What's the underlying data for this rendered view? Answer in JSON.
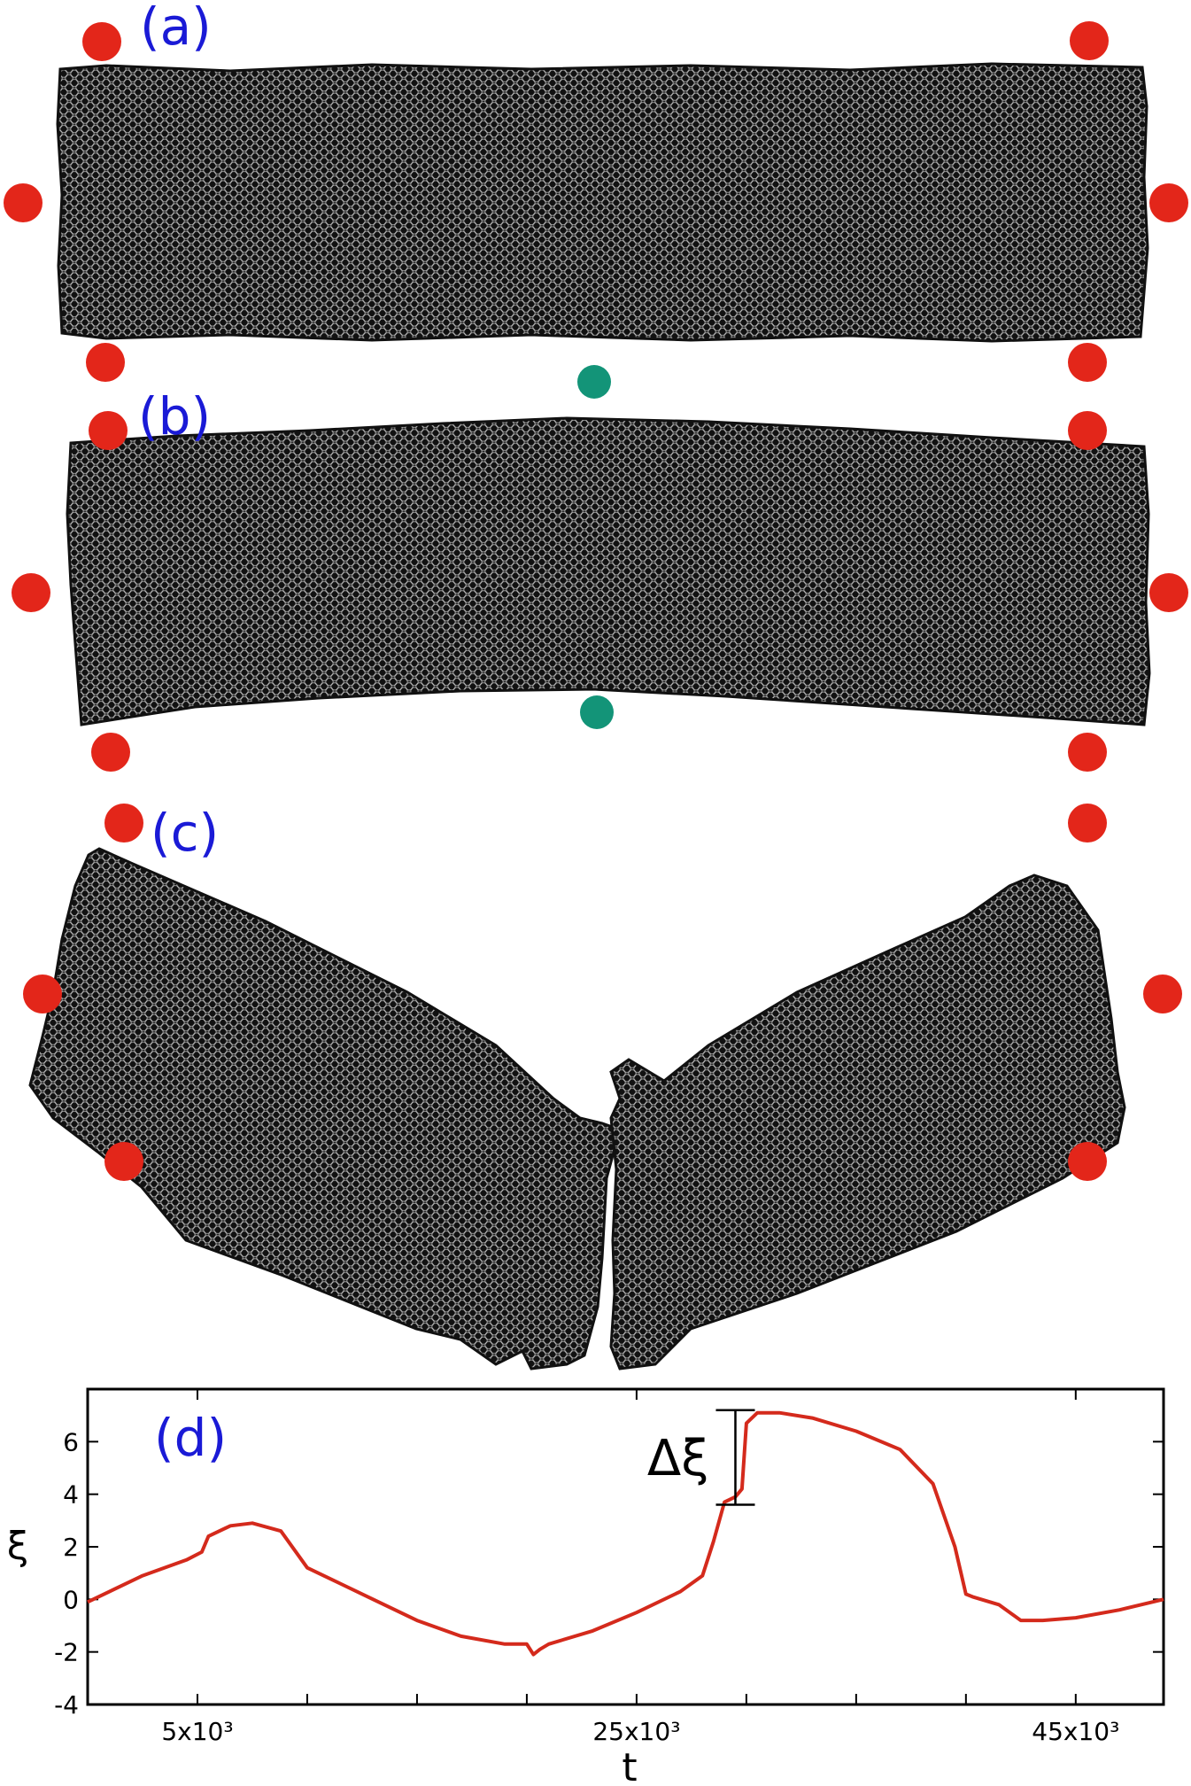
{
  "panels": {
    "a": {
      "label": "(a)"
    },
    "b": {
      "label": "(b)"
    },
    "c": {
      "label": "(c)"
    },
    "d": {
      "label": "(d)"
    }
  },
  "colors": {
    "grain": "#111111",
    "grain_highlight": "#f2f2f2",
    "boundary_particle": "#e3261a",
    "indenter": "#139478",
    "panel_label": "#1a1ad6",
    "curve": "#d42a1c"
  },
  "chart_data": {
    "type": "line",
    "xlabel": "t",
    "ylabel": "ξ",
    "xlim": [
      0,
      49000
    ],
    "ylim": [
      -4,
      8
    ],
    "xticks": [
      5000,
      25000,
      45000
    ],
    "xtick_labels": [
      "5x10³",
      "25x10³",
      "45x10³"
    ],
    "yticks": [
      -4,
      -2,
      0,
      2,
      4,
      6
    ],
    "ytick_labels": [
      "-4",
      "-2",
      "0",
      "2",
      "4",
      "6"
    ],
    "annotation": {
      "text": "Δξ",
      "from": 3.6,
      "to": 7.2,
      "at_t": 29500
    },
    "series": [
      {
        "x": [
          0,
          1000,
          2500,
          4500,
          5200,
          5500,
          6500,
          7500,
          8800,
          10000,
          11500,
          13000,
          15000,
          17000,
          19000,
          20000,
          20300,
          20600,
          21000,
          23000,
          25000,
          27000,
          28000,
          28500,
          29000,
          29500,
          29800,
          30000,
          30500,
          31500,
          33000,
          35000,
          37000,
          38500,
          39500,
          40000,
          40300,
          41500,
          42500,
          43500,
          45000,
          47000,
          49000
        ],
        "y": [
          -0.1,
          0.3,
          0.9,
          1.5,
          1.8,
          2.4,
          2.8,
          2.9,
          2.6,
          1.2,
          0.6,
          0.0,
          -0.8,
          -1.4,
          -1.7,
          -1.7,
          -2.1,
          -1.9,
          -1.7,
          -1.2,
          -0.5,
          0.3,
          0.9,
          2.2,
          3.7,
          3.9,
          4.2,
          6.7,
          7.1,
          7.1,
          6.9,
          6.4,
          5.7,
          4.4,
          2.0,
          0.2,
          0.1,
          -0.2,
          -0.8,
          -0.8,
          -0.7,
          -0.4,
          0.0
        ]
      }
    ]
  }
}
